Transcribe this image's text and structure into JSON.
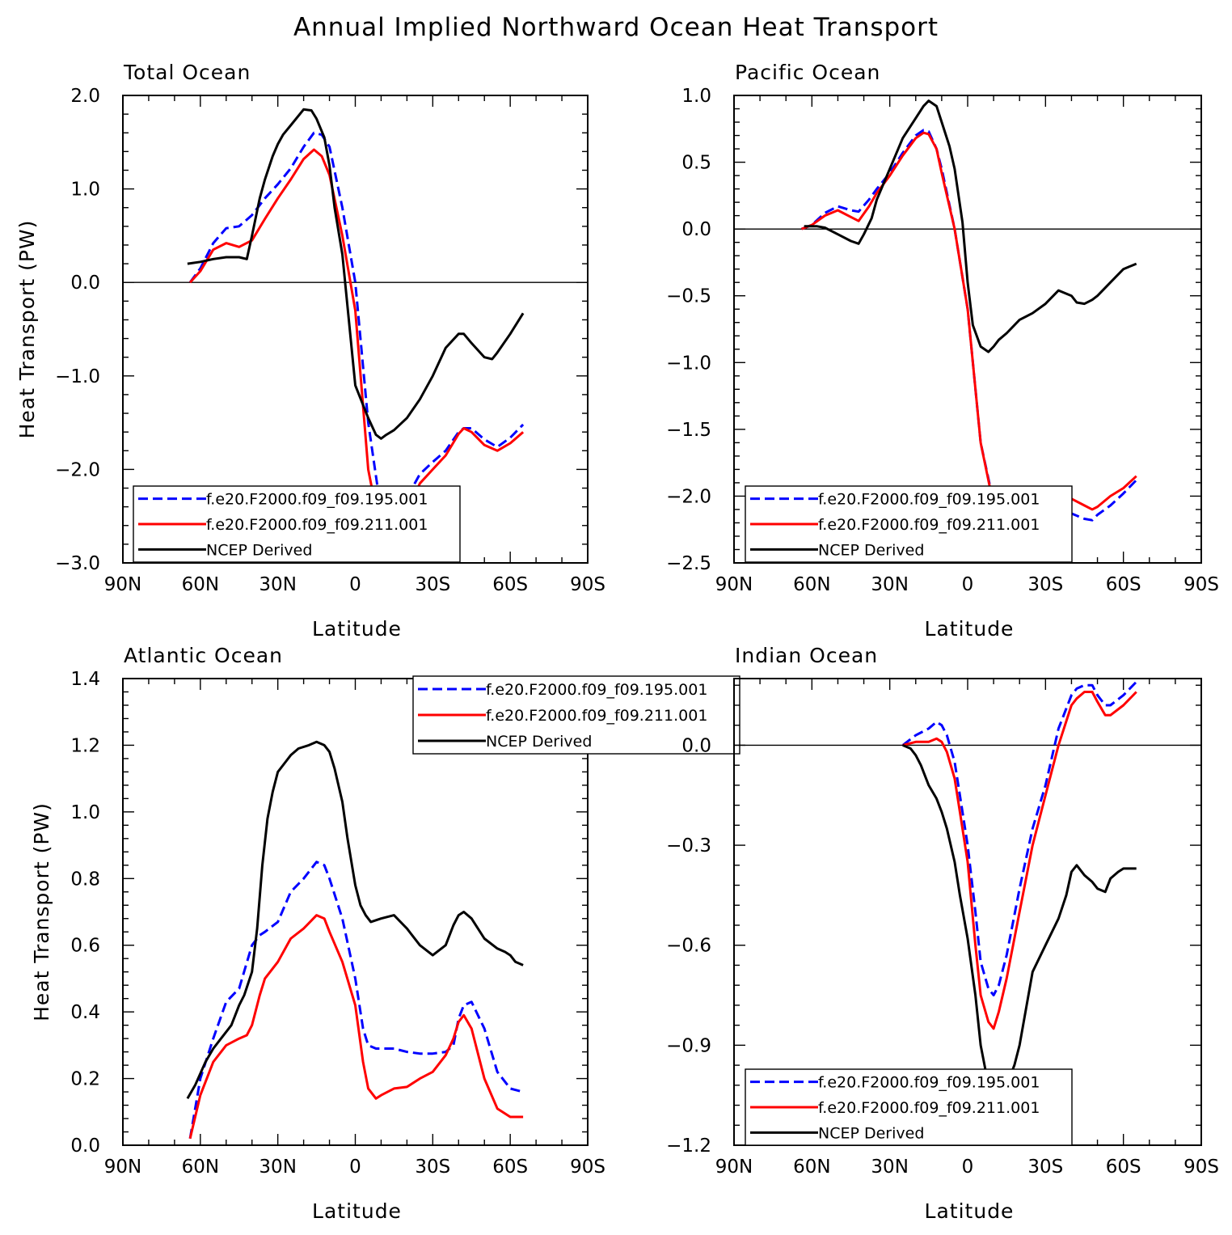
{
  "figure": {
    "title": "Annual Implied Northward Ocean Heat Transport"
  },
  "series_styles": [
    {
      "name": "f.e20.F2000.f09_f09.195.001",
      "color": "#0000ff",
      "dash": "dashed"
    },
    {
      "name": "f.e20.F2000.f09_f09.211.001",
      "color": "#ff0000",
      "dash": "solid"
    },
    {
      "name": "NCEP Derived",
      "color": "#000000",
      "dash": "solid"
    }
  ],
  "chart_data": [
    {
      "type": "line",
      "title": "Total Ocean",
      "xlabel": "Latitude",
      "ylabel": "Heat Transport (PW)",
      "xlim": [
        -90,
        90
      ],
      "ylim": [
        -3.0,
        2.0
      ],
      "xticks": [
        -90,
        -60,
        -30,
        0,
        30,
        60,
        90
      ],
      "xticklabels": [
        "90N",
        "60N",
        "30N",
        "0",
        "30S",
        "60S",
        "90S"
      ],
      "yticks": [
        2.0,
        1.0,
        0.0,
        -1.0,
        -2.0,
        -3.0
      ],
      "yticklabels": [
        "2.0",
        "1.0",
        "0.0",
        "−1.0",
        "−2.0",
        "−3.0"
      ],
      "zero_line": true,
      "legend_position": "bottom-left",
      "series": [
        {
          "name": "f.e20.F2000.f09_f09.195.001",
          "x": [
            -64,
            -60,
            -55,
            -50,
            -45,
            -40,
            -35,
            -30,
            -25,
            -20,
            -16,
            -13,
            -10,
            -5,
            0,
            5,
            10,
            13,
            16,
            20,
            25,
            30,
            35,
            40,
            42,
            45,
            50,
            55,
            60,
            65
          ],
          "y": [
            0.0,
            0.15,
            0.42,
            0.58,
            0.6,
            0.72,
            0.9,
            1.05,
            1.22,
            1.45,
            1.6,
            1.58,
            1.45,
            0.8,
            0.0,
            -1.5,
            -2.45,
            -2.6,
            -2.5,
            -2.3,
            -2.05,
            -1.92,
            -1.8,
            -1.6,
            -1.56,
            -1.56,
            -1.68,
            -1.76,
            -1.66,
            -1.52
          ]
        },
        {
          "name": "f.e20.F2000.f09_f09.211.001",
          "x": [
            -64,
            -60,
            -55,
            -50,
            -45,
            -40,
            -35,
            -30,
            -25,
            -20,
            -16,
            -13,
            -10,
            -5,
            0,
            5,
            10,
            13,
            16,
            20,
            25,
            30,
            35,
            40,
            42,
            45,
            50,
            55,
            60,
            65
          ],
          "y": [
            0.0,
            0.12,
            0.35,
            0.42,
            0.38,
            0.45,
            0.68,
            0.9,
            1.1,
            1.32,
            1.42,
            1.35,
            1.15,
            0.5,
            -0.3,
            -2.0,
            -2.7,
            -2.82,
            -2.7,
            -2.45,
            -2.15,
            -2.0,
            -1.85,
            -1.62,
            -1.56,
            -1.6,
            -1.74,
            -1.8,
            -1.72,
            -1.6
          ]
        },
        {
          "name": "NCEP Derived",
          "x": [
            -65,
            -60,
            -55,
            -50,
            -45,
            -42,
            -40,
            -37,
            -35,
            -32,
            -30,
            -28,
            -25,
            -20,
            -17,
            -15,
            -12,
            -10,
            -8,
            -5,
            0,
            5,
            8,
            10,
            12,
            15,
            20,
            25,
            30,
            35,
            40,
            42,
            45,
            50,
            53,
            55,
            60,
            65
          ],
          "y": [
            0.2,
            0.22,
            0.25,
            0.27,
            0.27,
            0.25,
            0.5,
            0.9,
            1.1,
            1.35,
            1.48,
            1.58,
            1.68,
            1.85,
            1.84,
            1.75,
            1.55,
            1.25,
            0.8,
            0.3,
            -1.1,
            -1.45,
            -1.63,
            -1.67,
            -1.63,
            -1.58,
            -1.45,
            -1.25,
            -1.0,
            -0.7,
            -0.55,
            -0.55,
            -0.65,
            -0.8,
            -0.82,
            -0.75,
            -0.55,
            -0.33
          ]
        }
      ]
    },
    {
      "type": "line",
      "title": "Pacific Ocean",
      "xlabel": "Latitude",
      "ylabel": "",
      "xlim": [
        -90,
        90
      ],
      "ylim": [
        -2.5,
        1.0
      ],
      "xticks": [
        -90,
        -60,
        -30,
        0,
        30,
        60,
        90
      ],
      "xticklabels": [
        "90N",
        "60N",
        "30N",
        "0",
        "30S",
        "60S",
        "90S"
      ],
      "yticks": [
        1.0,
        0.5,
        0.0,
        -0.5,
        -1.0,
        -1.5,
        -2.0,
        -2.5
      ],
      "yticklabels": [
        "1.0",
        "0.5",
        "0.0",
        "−0.5",
        "−1.0",
        "−1.5",
        "−2.0",
        "−2.5"
      ],
      "zero_line": true,
      "legend_position": "bottom-left",
      "series": [
        {
          "name": "f.e20.F2000.f09_f09.195.001",
          "x": [
            -64,
            -60,
            -55,
            -50,
            -45,
            -42,
            -38,
            -35,
            -30,
            -25,
            -20,
            -17,
            -15,
            -12,
            -10,
            -5,
            0,
            5,
            10,
            13,
            15,
            20,
            25,
            30,
            35,
            40,
            45,
            48,
            50,
            55,
            60,
            65
          ],
          "y": [
            0.0,
            0.03,
            0.12,
            0.17,
            0.14,
            0.13,
            0.22,
            0.3,
            0.42,
            0.57,
            0.7,
            0.74,
            0.73,
            0.6,
            0.45,
            0.0,
            -0.6,
            -1.6,
            -2.05,
            -2.13,
            -2.13,
            -2.08,
            -2.03,
            -2.05,
            -2.1,
            -2.13,
            -2.17,
            -2.18,
            -2.14,
            -2.07,
            -1.98,
            -1.88
          ]
        },
        {
          "name": "f.e20.F2000.f09_f09.211.001",
          "x": [
            -64,
            -60,
            -55,
            -50,
            -45,
            -42,
            -38,
            -35,
            -30,
            -25,
            -20,
            -17,
            -15,
            -12,
            -10,
            -5,
            0,
            5,
            10,
            13,
            15,
            20,
            25,
            30,
            35,
            40,
            45,
            48,
            50,
            55,
            60,
            65
          ],
          "y": [
            0.0,
            0.03,
            0.1,
            0.14,
            0.09,
            0.06,
            0.17,
            0.27,
            0.4,
            0.55,
            0.68,
            0.72,
            0.71,
            0.6,
            0.42,
            0.0,
            -0.6,
            -1.6,
            -2.07,
            -2.15,
            -2.14,
            -2.05,
            -1.98,
            -1.96,
            -1.98,
            -2.02,
            -2.07,
            -2.1,
            -2.08,
            -2.0,
            -1.94,
            -1.85
          ]
        },
        {
          "name": "NCEP Derived",
          "x": [
            -63,
            -58,
            -55,
            -50,
            -45,
            -42,
            -40,
            -37,
            -35,
            -30,
            -25,
            -20,
            -17,
            -15,
            -12,
            -10,
            -7,
            -5,
            -2,
            0,
            2,
            5,
            8,
            10,
            12,
            15,
            20,
            25,
            30,
            35,
            40,
            42,
            45,
            48,
            50,
            55,
            60,
            65
          ],
          "y": [
            0.02,
            0.02,
            0.01,
            -0.04,
            -0.09,
            -0.11,
            -0.04,
            0.08,
            0.22,
            0.45,
            0.68,
            0.83,
            0.92,
            0.96,
            0.92,
            0.8,
            0.62,
            0.45,
            0.05,
            -0.4,
            -0.72,
            -0.88,
            -0.92,
            -0.88,
            -0.83,
            -0.78,
            -0.68,
            -0.63,
            -0.56,
            -0.46,
            -0.5,
            -0.55,
            -0.56,
            -0.53,
            -0.5,
            -0.4,
            -0.3,
            -0.26
          ]
        }
      ]
    },
    {
      "type": "line",
      "title": "Atlantic Ocean",
      "xlabel": "Latitude",
      "ylabel": "Heat Transport (PW)",
      "xlim": [
        -90,
        90
      ],
      "ylim": [
        0.0,
        1.4
      ],
      "xticks": [
        -90,
        -60,
        -30,
        0,
        30,
        60,
        90
      ],
      "xticklabels": [
        "90N",
        "60N",
        "30N",
        "0",
        "30S",
        "60S",
        "90S"
      ],
      "yticks": [
        1.4,
        1.2,
        1.0,
        0.8,
        0.6,
        0.4,
        0.2,
        0.0
      ],
      "yticklabels": [
        "1.4",
        "1.2",
        "1.0",
        "0.8",
        "0.6",
        "0.4",
        "0.2",
        "0.0"
      ],
      "zero_line": false,
      "legend_position": "top-right",
      "series": [
        {
          "name": "f.e20.F2000.f09_f09.195.001",
          "x": [
            -64,
            -60,
            -55,
            -50,
            -45,
            -40,
            -37,
            -35,
            -30,
            -25,
            -20,
            -15,
            -12,
            -10,
            -5,
            0,
            3,
            5,
            8,
            10,
            15,
            20,
            25,
            30,
            35,
            38,
            40,
            42,
            45,
            50,
            55,
            60,
            65
          ],
          "y": [
            0.02,
            0.2,
            0.32,
            0.43,
            0.47,
            0.6,
            0.63,
            0.64,
            0.67,
            0.76,
            0.8,
            0.85,
            0.84,
            0.8,
            0.68,
            0.5,
            0.35,
            0.3,
            0.29,
            0.29,
            0.29,
            0.28,
            0.275,
            0.275,
            0.28,
            0.3,
            0.38,
            0.42,
            0.43,
            0.35,
            0.22,
            0.17,
            0.16
          ]
        },
        {
          "name": "f.e20.F2000.f09_f09.211.001",
          "x": [
            -64,
            -60,
            -55,
            -50,
            -45,
            -42,
            -40,
            -37,
            -35,
            -30,
            -25,
            -20,
            -15,
            -12,
            -10,
            -5,
            0,
            3,
            5,
            8,
            10,
            15,
            20,
            25,
            30,
            35,
            38,
            40,
            42,
            45,
            50,
            55,
            60,
            65
          ],
          "y": [
            0.02,
            0.15,
            0.25,
            0.3,
            0.32,
            0.33,
            0.36,
            0.45,
            0.5,
            0.55,
            0.62,
            0.65,
            0.69,
            0.68,
            0.64,
            0.55,
            0.42,
            0.25,
            0.17,
            0.14,
            0.15,
            0.17,
            0.175,
            0.2,
            0.22,
            0.27,
            0.32,
            0.37,
            0.39,
            0.35,
            0.2,
            0.11,
            0.085,
            0.085
          ]
        },
        {
          "name": "NCEP Derived",
          "x": [
            -65,
            -62,
            -58,
            -55,
            -52,
            -48,
            -45,
            -43,
            -40,
            -38,
            -36,
            -34,
            -32,
            -30,
            -27,
            -25,
            -22,
            -18,
            -15,
            -12,
            -10,
            -8,
            -5,
            -3,
            0,
            2,
            4,
            6,
            10,
            15,
            20,
            25,
            30,
            35,
            38,
            40,
            42,
            45,
            50,
            55,
            58,
            60,
            62,
            65
          ],
          "y": [
            0.14,
            0.18,
            0.25,
            0.29,
            0.32,
            0.36,
            0.42,
            0.45,
            0.52,
            0.65,
            0.84,
            0.98,
            1.06,
            1.12,
            1.15,
            1.17,
            1.19,
            1.2,
            1.21,
            1.2,
            1.18,
            1.13,
            1.03,
            0.92,
            0.78,
            0.72,
            0.69,
            0.67,
            0.68,
            0.69,
            0.65,
            0.6,
            0.57,
            0.6,
            0.66,
            0.69,
            0.7,
            0.68,
            0.62,
            0.59,
            0.58,
            0.57,
            0.55,
            0.54
          ]
        }
      ]
    },
    {
      "type": "line",
      "title": "Indian Ocean",
      "xlabel": "Latitude",
      "ylabel": "",
      "xlim": [
        -90,
        90
      ],
      "ylim": [
        -1.2,
        0.2
      ],
      "xticks": [
        -90,
        -60,
        -30,
        0,
        30,
        60,
        90
      ],
      "xticklabels": [
        "90N",
        "60N",
        "30N",
        "0",
        "30S",
        "60S",
        "90S"
      ],
      "yticks": [
        0.0,
        -0.3,
        -0.6,
        -0.9,
        -1.2
      ],
      "yticklabels": [
        "0.0",
        "−0.3",
        "−0.6",
        "−0.9",
        "−1.2"
      ],
      "zero_line": true,
      "legend_position": "bottom-left",
      "series": [
        {
          "name": "f.e20.F2000.f09_f09.195.001",
          "x": [
            -25,
            -20,
            -15,
            -12,
            -10,
            -8,
            -5,
            -3,
            0,
            3,
            5,
            8,
            10,
            12,
            15,
            20,
            25,
            30,
            35,
            40,
            42,
            45,
            48,
            50,
            53,
            55,
            60,
            65
          ],
          "y": [
            0.0,
            0.03,
            0.05,
            0.07,
            0.06,
            0.03,
            -0.05,
            -0.15,
            -0.3,
            -0.5,
            -0.65,
            -0.73,
            -0.75,
            -0.72,
            -0.63,
            -0.43,
            -0.25,
            -0.12,
            0.05,
            0.15,
            0.17,
            0.18,
            0.18,
            0.15,
            0.12,
            0.12,
            0.15,
            0.19
          ]
        },
        {
          "name": "f.e20.F2000.f09_f09.211.001",
          "x": [
            -25,
            -20,
            -15,
            -12,
            -10,
            -8,
            -5,
            -3,
            0,
            3,
            5,
            8,
            10,
            12,
            15,
            20,
            25,
            30,
            35,
            40,
            42,
            45,
            48,
            50,
            53,
            55,
            60,
            65
          ],
          "y": [
            0.0,
            0.01,
            0.01,
            0.02,
            0.01,
            -0.02,
            -0.1,
            -0.2,
            -0.35,
            -0.6,
            -0.75,
            -0.83,
            -0.85,
            -0.8,
            -0.7,
            -0.5,
            -0.3,
            -0.15,
            0.0,
            0.12,
            0.14,
            0.16,
            0.16,
            0.13,
            0.09,
            0.09,
            0.12,
            0.16
          ]
        },
        {
          "name": "NCEP Derived",
          "x": [
            -25,
            -22,
            -20,
            -18,
            -15,
            -12,
            -10,
            -8,
            -5,
            -3,
            0,
            3,
            5,
            8,
            10,
            12,
            15,
            18,
            20,
            25,
            30,
            35,
            38,
            40,
            42,
            45,
            48,
            50,
            53,
            55,
            58,
            60,
            65
          ],
          "y": [
            0.0,
            -0.01,
            -0.03,
            -0.06,
            -0.12,
            -0.16,
            -0.2,
            -0.25,
            -0.35,
            -0.45,
            -0.58,
            -0.75,
            -0.9,
            -1.02,
            -1.05,
            -1.06,
            -1.02,
            -0.96,
            -0.9,
            -0.68,
            -0.6,
            -0.52,
            -0.45,
            -0.38,
            -0.36,
            -0.39,
            -0.41,
            -0.43,
            -0.44,
            -0.4,
            -0.38,
            -0.37,
            -0.37
          ]
        }
      ]
    }
  ]
}
